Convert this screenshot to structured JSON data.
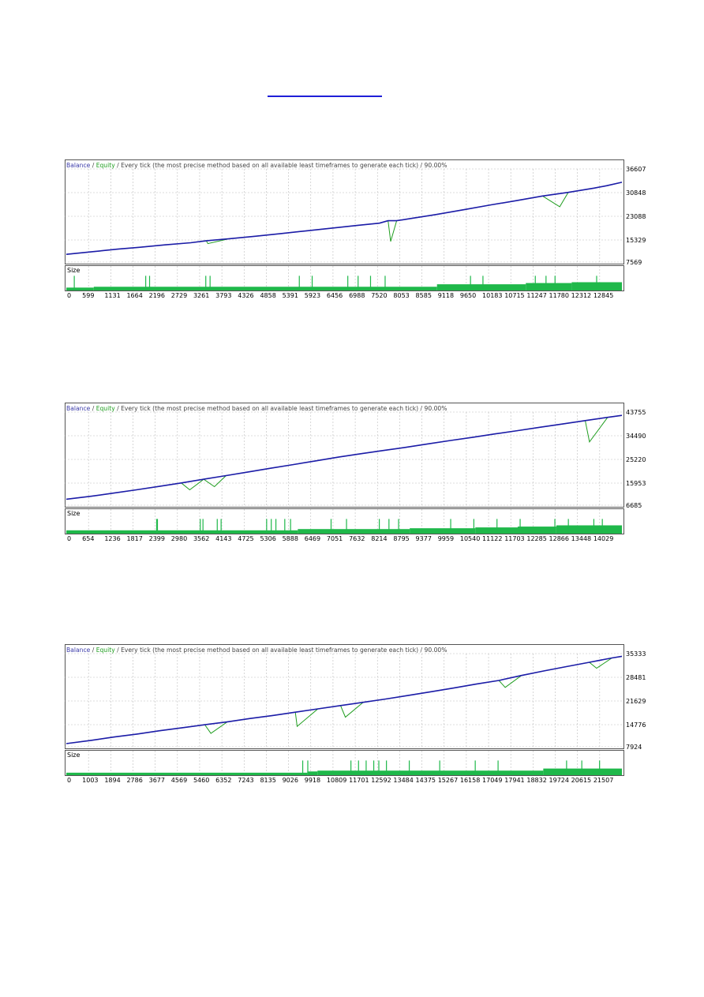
{
  "header": {
    "balance": "Balance",
    "sep1": " / ",
    "equity": "Equity",
    "sep2": " / Every tick (the most precise method based on all available least timeframes to generate each tick) / ",
    "quality": "90.00%"
  },
  "size_label": "Size",
  "colors": {
    "balance": "#1c1ca8",
    "equity": "#1f9d1f",
    "size_bar": "#1fb84a",
    "grid": "#bcbcbc",
    "header_text": "#444444",
    "link": "#1e1ed8"
  },
  "chart_data": [
    {
      "type": "line",
      "series": [
        {
          "name": "Balance",
          "x": [
            0,
            640,
            1200,
            1700,
            2300,
            2900,
            3300,
            3800,
            4400,
            5000,
            5600,
            6200,
            6800,
            7300,
            7500,
            7700,
            8100,
            8600,
            9300,
            9900,
            10500,
            11100,
            11700,
            12300,
            12600,
            12950
          ],
          "y": [
            9600,
            10500,
            11300,
            11900,
            12700,
            13400,
            14100,
            14700,
            15500,
            16400,
            17300,
            18200,
            19100,
            19800,
            20600,
            20600,
            21500,
            22600,
            24300,
            25800,
            27200,
            28700,
            29900,
            31300,
            32100,
            33200
          ]
        },
        {
          "name": "Equity",
          "x": [
            0,
            640,
            1200,
            1700,
            2300,
            2900,
            3260,
            3300,
            3800,
            4400,
            5000,
            5600,
            6200,
            6800,
            7300,
            7500,
            7560,
            7700,
            8100,
            8600,
            9300,
            9900,
            10500,
            11100,
            11500,
            11700,
            12300,
            12600,
            12950
          ],
          "y": [
            9600,
            10500,
            11300,
            11900,
            12700,
            13400,
            14100,
            13100,
            14700,
            15500,
            16400,
            17300,
            18200,
            19100,
            19800,
            20600,
            13800,
            20600,
            21500,
            22600,
            24300,
            25800,
            27200,
            28700,
            25200,
            29900,
            31300,
            32100,
            33200
          ]
        }
      ],
      "x_ticks": [
        "0",
        "599",
        "1131",
        "1664",
        "2196",
        "2729",
        "3261",
        "3793",
        "4326",
        "4858",
        "5391",
        "5923",
        "6456",
        "6988",
        "7520",
        "8053",
        "8585",
        "9118",
        "9650",
        "10183",
        "10715",
        "11247",
        "11780",
        "12312",
        "12845"
      ],
      "y_ticks": [
        "36607",
        "30848",
        "23088",
        "15329",
        "7569"
      ],
      "ylim": [
        7569,
        38100
      ],
      "xlim": [
        0,
        12950
      ],
      "grid": true,
      "size_bars": [
        [
          0,
          640,
          0.35
        ],
        [
          640,
          8640,
          0.45
        ],
        [
          8640,
          10710,
          0.75
        ],
        [
          10710,
          11780,
          0.9
        ],
        [
          11780,
          12950,
          1.0
        ]
      ],
      "size_spikes": [
        175,
        1840,
        1930,
        3240,
        3340,
        5420,
        5720,
        6550,
        6790,
        7080,
        7420,
        9410,
        9700,
        10920,
        11170,
        11380,
        12350
      ]
    },
    {
      "type": "line",
      "series": [
        {
          "name": "Balance",
          "x": [
            0,
            654,
            1236,
            1817,
            2399,
            2980,
            3562,
            4143,
            4725,
            5306,
            5888,
            6469,
            7051,
            7632,
            8214,
            8795,
            9377,
            9959,
            10540,
            11122,
            11703,
            12285,
            12866,
            13448,
            14029,
            14400
          ],
          "y": [
            8500,
            9700,
            11000,
            12300,
            13700,
            15100,
            16600,
            18100,
            19600,
            21100,
            22600,
            24100,
            25600,
            27000,
            28300,
            29600,
            31000,
            32400,
            33700,
            35100,
            36400,
            37800,
            39100,
            40500,
            41800,
            42600
          ]
        },
        {
          "name": "Equity",
          "x": [
            0,
            654,
            1236,
            1817,
            2399,
            2980,
            3200,
            3562,
            3840,
            4143,
            4725,
            5306,
            5888,
            6469,
            7051,
            7632,
            8214,
            8795,
            9377,
            9959,
            10540,
            11122,
            11703,
            12285,
            12866,
            13448,
            13560,
            14029,
            14400
          ],
          "y": [
            8500,
            9700,
            11000,
            12300,
            13700,
            15100,
            12300,
            16600,
            13600,
            18100,
            19600,
            21100,
            22600,
            24100,
            25600,
            27000,
            28300,
            29600,
            31000,
            32400,
            33700,
            35100,
            36400,
            37800,
            39100,
            40500,
            31800,
            41800,
            42600
          ]
        }
      ],
      "x_ticks": [
        "0",
        "654",
        "1236",
        "1817",
        "2399",
        "2980",
        "3562",
        "4143",
        "4725",
        "5306",
        "5888",
        "6469",
        "7051",
        "7632",
        "8214",
        "8795",
        "9377",
        "9959",
        "10540",
        "11122",
        "11703",
        "12285",
        "12866",
        "13448",
        "14029"
      ],
      "y_ticks": [
        "43755",
        "34490",
        "25220",
        "15953",
        "6685"
      ],
      "ylim": [
        6685,
        44600
      ],
      "xlim": [
        0,
        14400
      ],
      "grid": true,
      "size_bars": [
        [
          0,
          6000,
          0.4
        ],
        [
          6000,
          8900,
          0.55
        ],
        [
          8900,
          10600,
          0.65
        ],
        [
          10600,
          11700,
          0.75
        ],
        [
          11700,
          12700,
          0.85
        ],
        [
          12700,
          14400,
          1.0
        ]
      ],
      "size_spikes": [
        2330,
        2350,
        3460,
        3530,
        3900,
        4000,
        5180,
        5300,
        5420,
        5650,
        5800,
        6850,
        7250,
        8100,
        8350,
        8600,
        9950,
        10550,
        11150,
        11750,
        12650,
        13000,
        13660,
        13880
      ]
    },
    {
      "type": "line",
      "series": [
        {
          "name": "Balance",
          "x": [
            0,
            1003,
            1894,
            2786,
            3677,
            4569,
            5460,
            6352,
            7243,
            8135,
            9026,
            9918,
            10809,
            11701,
            12592,
            13484,
            14375,
            15267,
            16158,
            17049,
            17941,
            18832,
            19724,
            20615,
            21507,
            21900
          ],
          "y": [
            8400,
            9400,
            10400,
            11300,
            12300,
            13200,
            14100,
            15000,
            16000,
            16900,
            17900,
            18900,
            19900,
            20900,
            21900,
            23000,
            24100,
            25200,
            26400,
            27500,
            29000,
            30400,
            31700,
            33000,
            34300,
            34800
          ]
        },
        {
          "name": "Equity",
          "x": [
            0,
            1003,
            1894,
            2786,
            3677,
            4569,
            5460,
            5700,
            6352,
            7243,
            8135,
            9026,
            9100,
            9918,
            10809,
            11000,
            11701,
            12592,
            13484,
            14375,
            15267,
            16158,
            17049,
            17300,
            17941,
            18832,
            19724,
            20615,
            20900,
            21507,
            21900
          ],
          "y": [
            8400,
            9400,
            10400,
            11300,
            12300,
            13200,
            14100,
            11500,
            15000,
            16000,
            16900,
            17900,
            13600,
            18900,
            19900,
            16400,
            20900,
            21900,
            23000,
            24100,
            25200,
            26400,
            27500,
            25400,
            29000,
            30400,
            31700,
            33000,
            31200,
            34300,
            34800
          ]
        }
      ],
      "x_ticks": [
        "0",
        "1003",
        "1894",
        "2786",
        "3677",
        "4569",
        "5460",
        "6352",
        "7243",
        "8135",
        "9026",
        "9918",
        "10809",
        "11701",
        "12592",
        "13484",
        "14375",
        "15267",
        "16158",
        "17049",
        "17941",
        "18832",
        "19724",
        "20615",
        "21507"
      ],
      "y_ticks": [
        "35333",
        "28481",
        "21629",
        "14776",
        "7924"
      ],
      "ylim": [
        7924,
        36100
      ],
      "xlim": [
        0,
        21900
      ],
      "grid": true,
      "size_bars": [
        [
          0,
          9500,
          0.3
        ],
        [
          9500,
          9900,
          0.45
        ],
        [
          9900,
          18800,
          0.55
        ],
        [
          18800,
          21900,
          0.8
        ]
      ],
      "size_spikes": [
        9300,
        9500,
        11200,
        11500,
        11800,
        12100,
        12300,
        12600,
        13500,
        14700,
        16100,
        17000,
        19700,
        20300,
        21000
      ]
    }
  ]
}
